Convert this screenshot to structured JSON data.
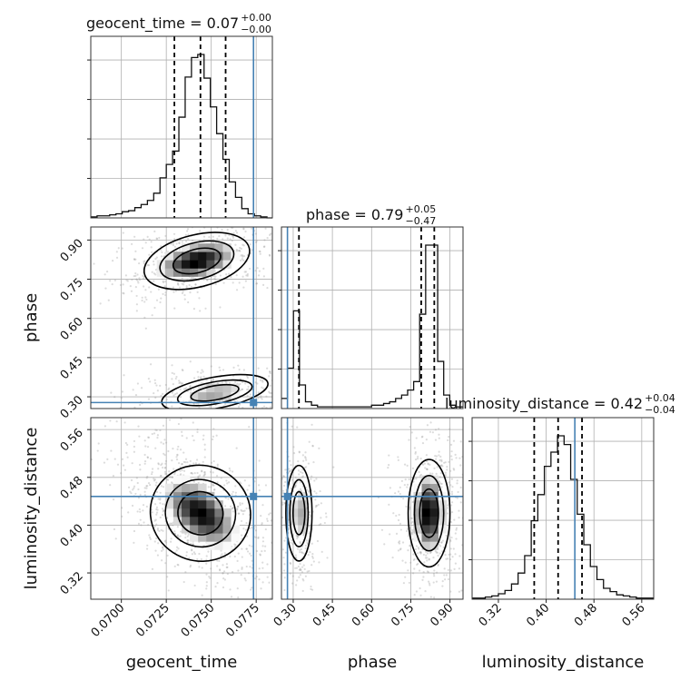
{
  "chart_data": {
    "type": "corner",
    "parameters": [
      "geocent_time",
      "phase",
      "luminosity_distance"
    ],
    "axis_labels": {
      "geocent_time": "geocent_time",
      "phase": "phase",
      "luminosity_distance": "luminosity_distance"
    },
    "ranges": {
      "geocent_time": [
        0.0683,
        0.0784
      ],
      "phase": [
        0.255,
        0.95
      ],
      "luminosity_distance": [
        0.276,
        0.58
      ]
    },
    "ticks": {
      "geocent_time": [
        "0.0700",
        "0.0725",
        "0.0750",
        "0.0775"
      ],
      "phase": [
        "0.30",
        "0.45",
        "0.60",
        "0.75",
        "0.90"
      ],
      "luminosity_distance": [
        "0.32",
        "0.40",
        "0.48",
        "0.56"
      ]
    },
    "truths": {
      "geocent_time": 0.07735,
      "phase": 0.278,
      "luminosity_distance": 0.448
    },
    "titles": {
      "geocent_time": {
        "label": "geocent_time = 0.07",
        "plus": "+0.00",
        "minus": "−0.00"
      },
      "phase": {
        "label": "phase = 0.79",
        "plus": "+0.05",
        "minus": "−0.47"
      },
      "luminosity_distance": {
        "label": "luminosity_distance = 0.42",
        "plus": "+0.04",
        "minus": "−0.04"
      }
    },
    "quantiles": {
      "geocent_time": [
        0.07295,
        0.0744,
        0.0758
      ],
      "phase": [
        0.322,
        0.79,
        0.84
      ],
      "luminosity_distance": [
        0.38,
        0.42,
        0.46
      ]
    },
    "histograms": {
      "geocent_time": {
        "edges": [
          0.0683,
          0.06865,
          0.069,
          0.06935,
          0.0697,
          0.07005,
          0.0704,
          0.07075,
          0.0711,
          0.07145,
          0.0718,
          0.07215,
          0.0725,
          0.07285,
          0.0732,
          0.07355,
          0.0739,
          0.07425,
          0.0746,
          0.07495,
          0.0753,
          0.07565,
          0.076,
          0.07635,
          0.0767,
          0.07705,
          0.0774,
          0.07775,
          0.0781,
          0.07845
        ],
        "counts": [
          1,
          2,
          2,
          3,
          4,
          6,
          7,
          10,
          13,
          17,
          24,
          39,
          52,
          65,
          98,
          137,
          156,
          159,
          136,
          108,
          82,
          57,
          35,
          20,
          9,
          4,
          2,
          1,
          0
        ]
      },
      "phase": {
        "edges": [
          0.255,
          0.278,
          0.301,
          0.324,
          0.347,
          0.37,
          0.393,
          0.416,
          0.439,
          0.462,
          0.485,
          0.508,
          0.531,
          0.554,
          0.577,
          0.6,
          0.623,
          0.646,
          0.669,
          0.692,
          0.715,
          0.738,
          0.761,
          0.784,
          0.807,
          0.83,
          0.853,
          0.876,
          0.899,
          0.922,
          0.95
        ],
        "counts": [
          6,
          24,
          58,
          14,
          4,
          2,
          1,
          1,
          1,
          1,
          1,
          1,
          1,
          1,
          1,
          2,
          2,
          3,
          4,
          6,
          8,
          11,
          16,
          56,
          97,
          97,
          28,
          8,
          2,
          1
        ]
      },
      "luminosity_distance": {
        "edges": [
          0.276,
          0.287,
          0.298,
          0.309,
          0.32,
          0.331,
          0.342,
          0.353,
          0.364,
          0.375,
          0.386,
          0.397,
          0.408,
          0.419,
          0.43,
          0.441,
          0.452,
          0.463,
          0.474,
          0.485,
          0.496,
          0.507,
          0.518,
          0.529,
          0.54,
          0.551,
          0.562,
          0.58
        ],
        "counts": [
          1,
          1,
          2,
          3,
          5,
          8,
          14,
          24,
          40,
          72,
          96,
          122,
          135,
          150,
          142,
          110,
          78,
          50,
          30,
          18,
          10,
          7,
          4,
          3,
          2,
          1,
          1
        ]
      }
    },
    "density_peaks": [
      {
        "x": "geocent_time",
        "y": "phase",
        "center": [
          0.0742,
          0.82
        ],
        "spread": [
          0.0015,
          0.05
        ],
        "rho": 0.4,
        "weight": 0.62
      },
      {
        "x": "geocent_time",
        "y": "phase",
        "center": [
          0.0752,
          0.315
        ],
        "spread": [
          0.0015,
          0.03
        ],
        "rho": 0.3,
        "weight": 0.38
      },
      {
        "x": "geocent_time",
        "y": "luminosity_distance",
        "center": [
          0.0744,
          0.42
        ],
        "spread": [
          0.0014,
          0.04
        ],
        "rho": -0.5,
        "weight": 1.0
      },
      {
        "x": "phase",
        "y": "luminosity_distance",
        "center": [
          0.322,
          0.42
        ],
        "spread": [
          0.025,
          0.04
        ],
        "rho": 0.0,
        "weight": 0.38
      },
      {
        "x": "phase",
        "y": "luminosity_distance",
        "center": [
          0.82,
          0.42
        ],
        "spread": [
          0.04,
          0.045
        ],
        "rho": 0.0,
        "weight": 0.62
      }
    ]
  }
}
